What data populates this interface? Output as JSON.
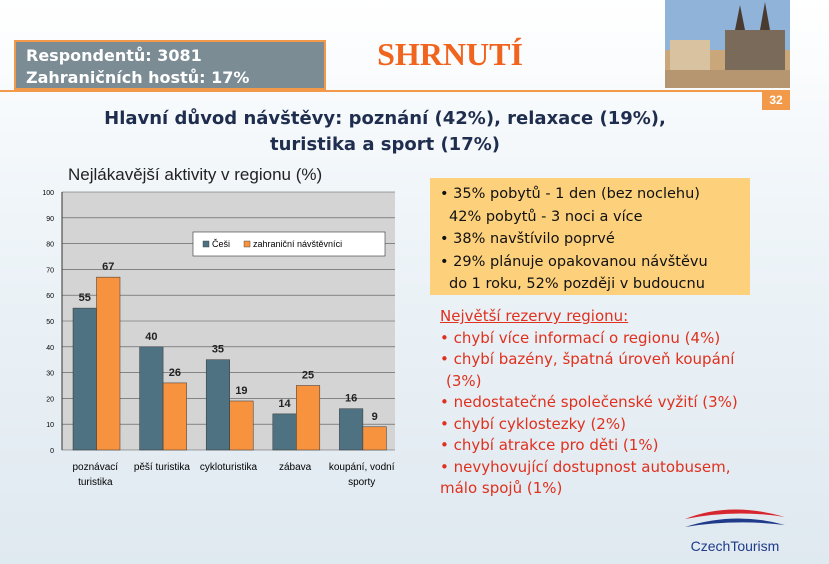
{
  "header": {
    "respondents": "Respondentů: 3081",
    "foreign": "Zahraničních hostů: 17%",
    "title": "SHRNUTÍ",
    "page": "32"
  },
  "headline": [
    "Hlavní důvod návštěvy: poznání (42%), relaxace (19%),",
    "turistika a sport (17%)"
  ],
  "info_box": [
    "• 35% pobytů - 1 den (bez noclehu)",
    "42% pobytů - 3 noci a více",
    "• 38% navštívilo poprvé",
    "• 29% plánuje opakovanou návštěvu",
    "do 1 roku, 52% později v budoucnu"
  ],
  "reserves": [
    "Největší rezervy regionu:",
    "• chybí více informací o regionu (4%)",
    "• chybí bazény, špatná úroveň koupání",
    "(3%)",
    "• nedostatečné společenské vyžití (3%)",
    "• chybí cyklostezky (2%)",
    "• chybí atrakce pro děti (1%)",
    "• nevyhovující dostupnost autobusem,",
    "málo spojů (1%)"
  ],
  "logo": "CzechTourism",
  "chart_data": {
    "type": "bar",
    "title": "Nejlákavější aktivity v regionu (%)",
    "categories": [
      "poznávací turistika",
      "pěší turistika",
      "cykloturistika",
      "zábava",
      "koupání, vodní sporty"
    ],
    "series": [
      {
        "name": "Češi",
        "color": "#4e7282",
        "values": [
          55,
          40,
          35,
          14,
          16
        ]
      },
      {
        "name": "zahraniční návštěvníci",
        "color": "#f7923f",
        "values": [
          67,
          26,
          19,
          25,
          9
        ]
      }
    ],
    "ylim": [
      0,
      100
    ],
    "yticks": [
      0,
      10,
      20,
      30,
      40,
      50,
      60,
      70,
      80,
      90,
      100
    ],
    "grid": true,
    "legend": "upper right"
  }
}
